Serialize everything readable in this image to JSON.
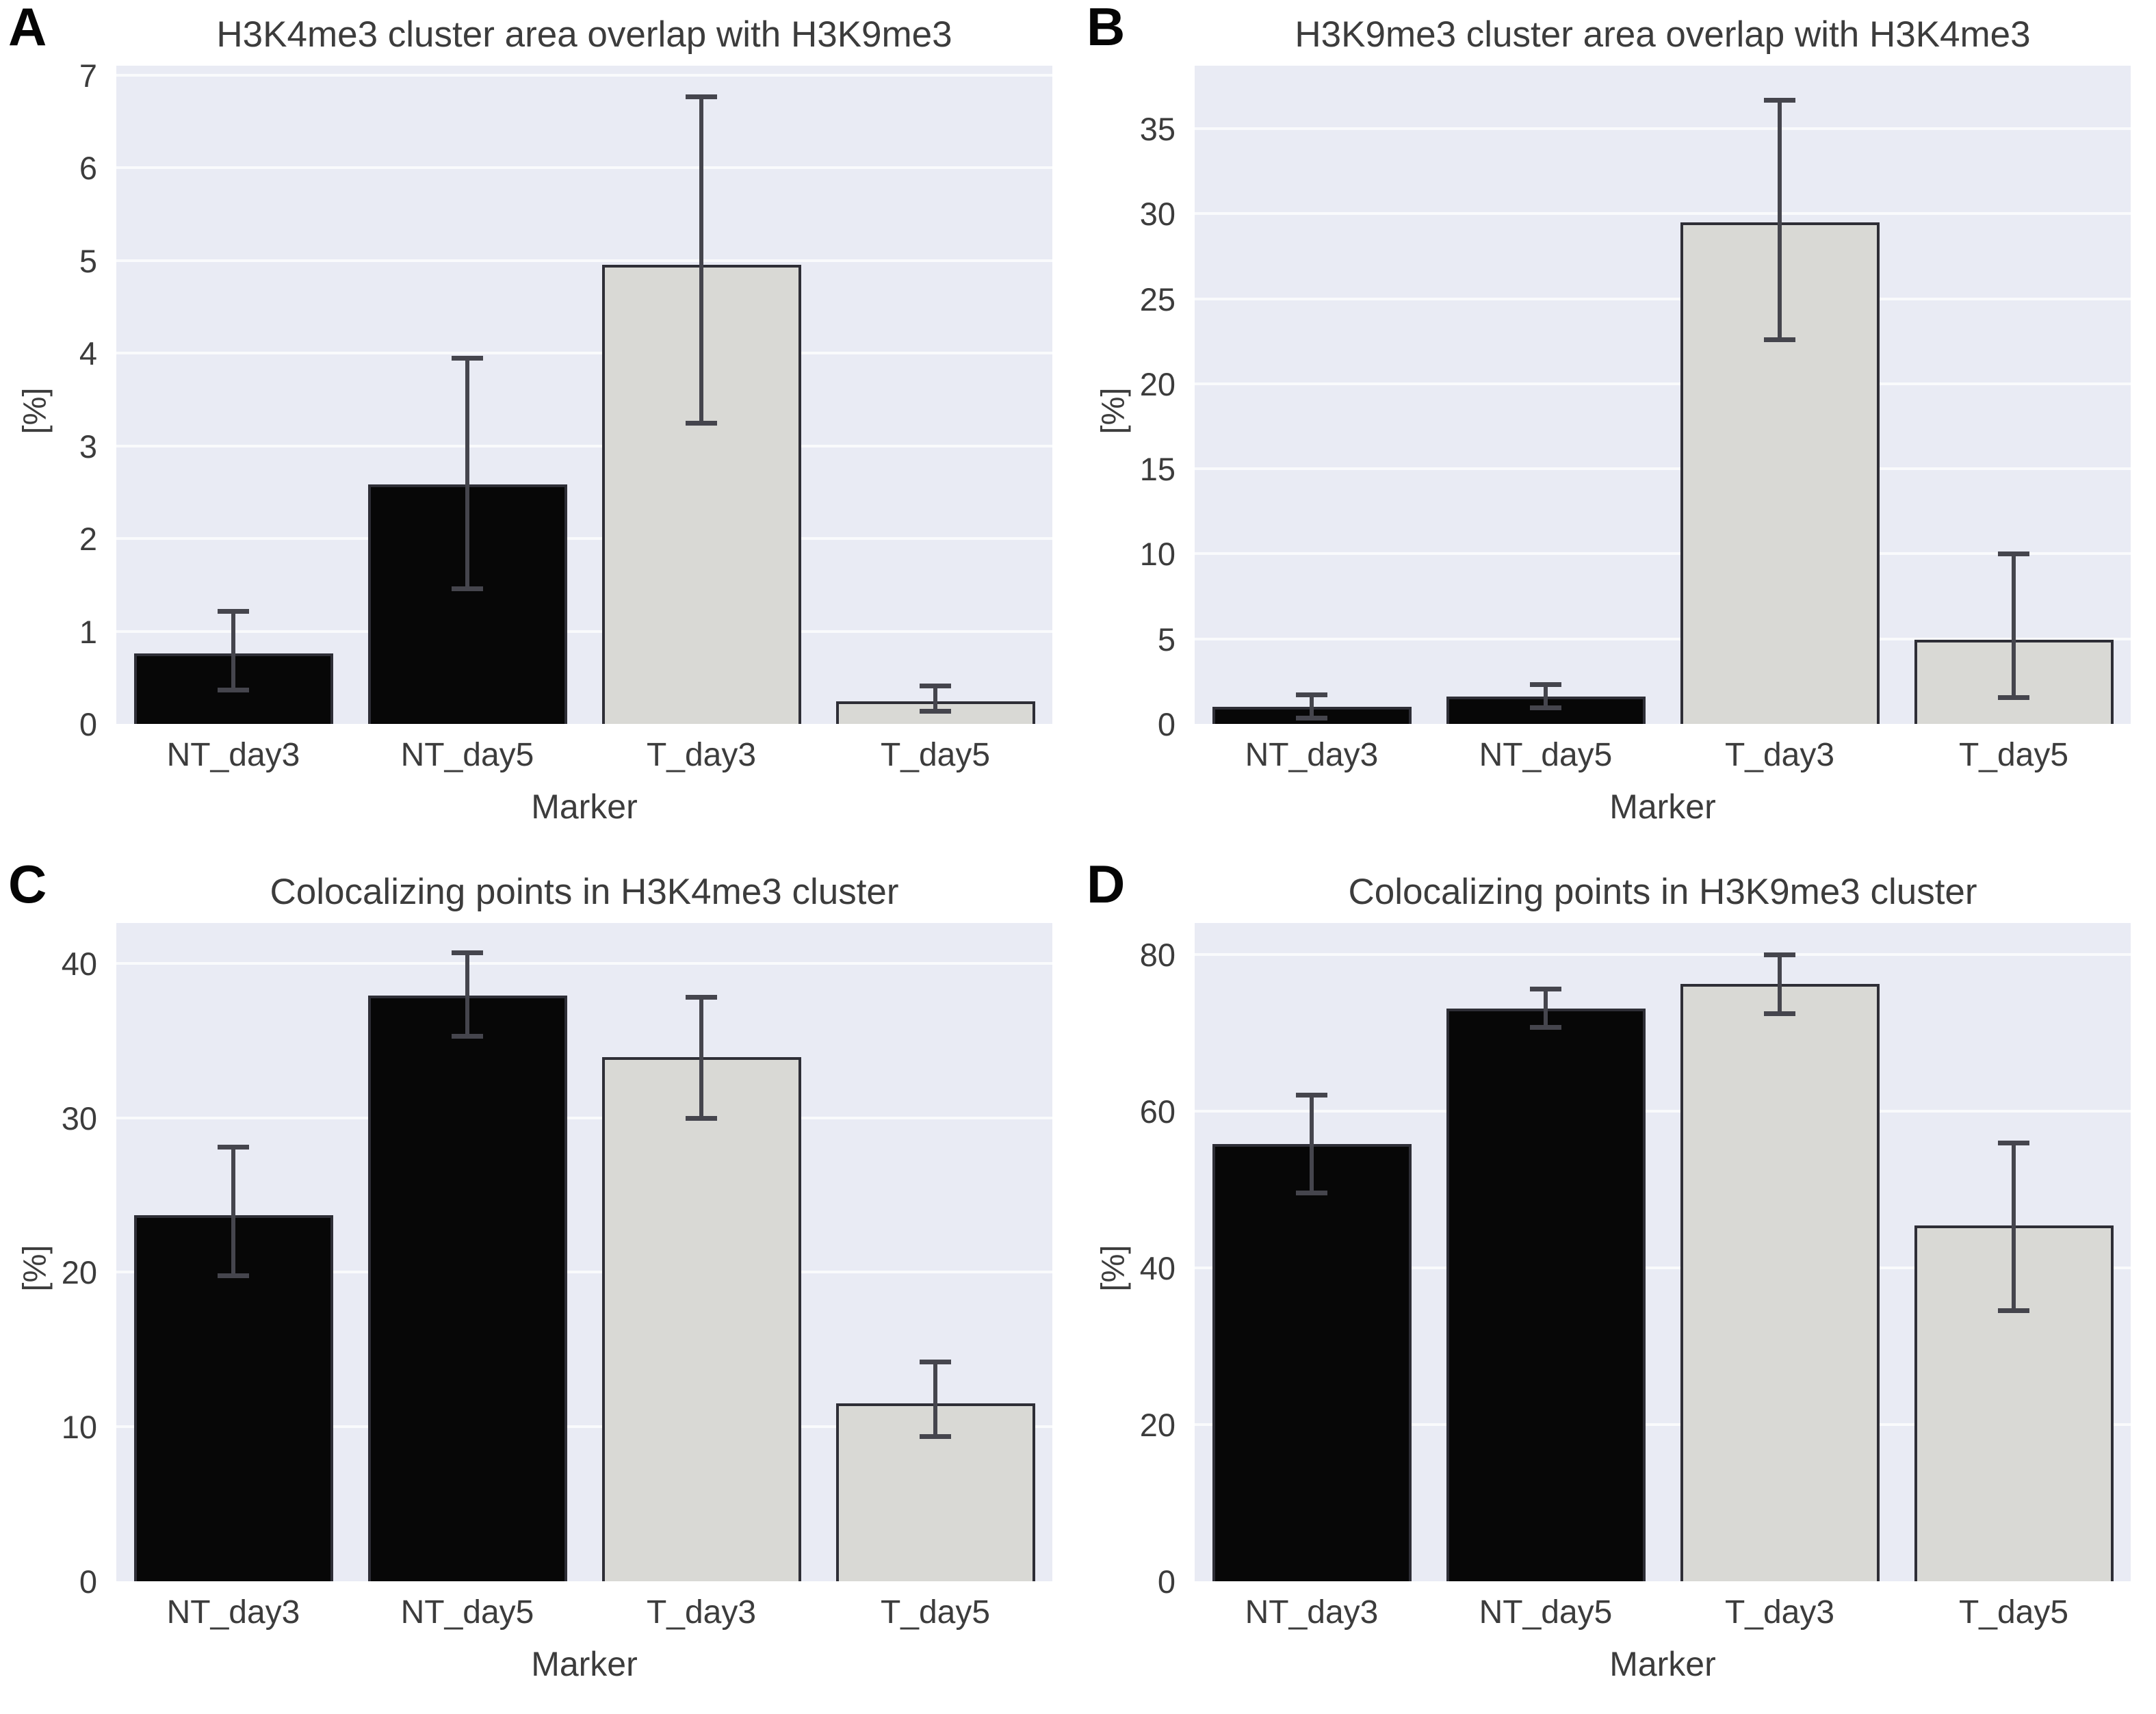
{
  "figure": {
    "description": "Four-panel bar chart figure with error bars",
    "colors": {
      "black_bar": "#070707",
      "gray_bar": "#d9d9d5",
      "bar_edge": "#2e2e36",
      "error": "#45454d",
      "plot_bg": "#e9ebf4",
      "grid": "#f9fafc",
      "text": "#3c3c3c"
    }
  },
  "chart_data": [
    {
      "type": "bar",
      "panel_letter": "A",
      "title": "H3K4me3 cluster area overlap with H3K9me3",
      "xlabel": "Marker",
      "ylabel": "[%]",
      "categories": [
        "NT_day3",
        "NT_day5",
        "T_day3",
        "T_day5"
      ],
      "values": [
        0.76,
        2.58,
        4.95,
        0.24
      ],
      "errors_low": [
        0.37,
        1.46,
        3.25,
        0.14
      ],
      "errors_high": [
        1.22,
        3.95,
        6.77,
        0.41
      ],
      "bar_styles": [
        "black",
        "black",
        "gray",
        "gray"
      ],
      "yticks": [
        0,
        1,
        2,
        3,
        4,
        5,
        6,
        7
      ],
      "ylim": [
        0,
        7.1
      ],
      "grid": "horizontal-major",
      "legend": "none"
    },
    {
      "type": "bar",
      "panel_letter": "B",
      "title": "H3K9me3 cluster area overlap with H3K4me3",
      "xlabel": "Marker",
      "ylabel": "[%]",
      "categories": [
        "NT_day3",
        "NT_day5",
        "T_day3",
        "T_day5"
      ],
      "values": [
        1.0,
        1.6,
        29.5,
        4.95
      ],
      "errors_low": [
        0.37,
        0.96,
        22.6,
        1.55
      ],
      "errors_high": [
        1.73,
        2.34,
        36.7,
        10.0
      ],
      "bar_styles": [
        "black",
        "black",
        "gray",
        "gray"
      ],
      "yticks": [
        0,
        5,
        10,
        15,
        20,
        25,
        30,
        35
      ],
      "ylim": [
        0,
        38.7
      ],
      "grid": "horizontal-major",
      "legend": "none"
    },
    {
      "type": "bar",
      "panel_letter": "C",
      "title": "Colocalizing points in H3K4me3 cluster",
      "xlabel": "Marker",
      "ylabel": "[%]",
      "categories": [
        "NT_day3",
        "NT_day5",
        "T_day3",
        "T_day5"
      ],
      "values": [
        23.7,
        37.9,
        33.9,
        11.5
      ],
      "errors_low": [
        19.8,
        35.3,
        30.0,
        9.4
      ],
      "errors_high": [
        28.1,
        40.7,
        37.8,
        14.2
      ],
      "bar_styles": [
        "black",
        "black",
        "gray",
        "gray"
      ],
      "yticks": [
        0,
        10,
        20,
        30,
        40
      ],
      "ylim": [
        0,
        42.6
      ],
      "grid": "horizontal-major",
      "legend": "none"
    },
    {
      "type": "bar",
      "panel_letter": "D",
      "title": "Colocalizing points in H3K9me3 cluster",
      "xlabel": "Marker",
      "ylabel": "[%]",
      "categories": [
        "NT_day3",
        "NT_day5",
        "T_day3",
        "T_day5"
      ],
      "values": [
        55.8,
        73.1,
        76.2,
        45.4
      ],
      "errors_low": [
        49.6,
        70.7,
        72.5,
        34.6
      ],
      "errors_high": [
        62.1,
        75.6,
        80.0,
        56.0
      ],
      "bar_styles": [
        "black",
        "black",
        "gray",
        "gray"
      ],
      "yticks": [
        0,
        20,
        40,
        60,
        80
      ],
      "ylim": [
        0,
        84
      ],
      "grid": "horizontal-major",
      "legend": "none"
    }
  ]
}
